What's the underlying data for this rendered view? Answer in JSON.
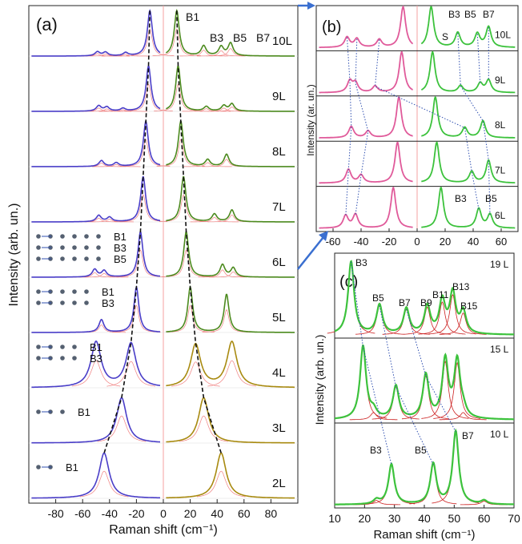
{
  "chart_data": [
    {
      "panel": "(a)",
      "type": "line",
      "xlabel": "Raman shift (cm⁻¹)",
      "ylabel": "Intensity (arb. un.)",
      "xlim": [
        -100,
        100
      ],
      "xticks": [
        -80,
        -60,
        -40,
        -20,
        0,
        20,
        40,
        60,
        80
      ],
      "colors": {
        "stokes": "#4a3ec8",
        "antistokes_green": "#4c8a1e",
        "antistokes_olive": "#a88a10",
        "fit": "#f08080",
        "zero_line": "#f4a0a0"
      },
      "rows": [
        {
          "label": "10L",
          "blue_peaks": [
            [
              -49,
              0.09
            ],
            [
              -43,
              0.08
            ],
            [
              -28,
              0.07
            ],
            [
              -10,
              1.0
            ]
          ],
          "green_peaks": [
            [
              10,
              1.0
            ],
            [
              30,
              0.22
            ],
            [
              43,
              0.2
            ],
            [
              50,
              0.28
            ]
          ],
          "green_color": "#4c8a1e"
        },
        {
          "label": "9L",
          "blue_peaks": [
            [
              -48,
              0.12
            ],
            [
              -42,
              0.09
            ],
            [
              -30,
              0.06
            ],
            [
              -11,
              1.0
            ]
          ],
          "green_peaks": [
            [
              11,
              1.0
            ],
            [
              32,
              0.1
            ],
            [
              45,
              0.12
            ],
            [
              51,
              0.16
            ]
          ],
          "green_color": "#4c8a1e"
        },
        {
          "label": "8L",
          "blue_peaks": [
            [
              -46,
              0.13
            ],
            [
              -35,
              0.08
            ],
            [
              -13,
              1.0
            ]
          ],
          "green_peaks": [
            [
              13,
              1.0
            ],
            [
              33,
              0.15
            ],
            [
              47,
              0.27
            ]
          ],
          "green_color": "#4c8a1e"
        },
        {
          "label": "7L",
          "blue_peaks": [
            [
              -48,
              0.14
            ],
            [
              -40,
              0.1
            ],
            [
              -15,
              1.0
            ]
          ],
          "green_peaks": [
            [
              15,
              1.0
            ],
            [
              38,
              0.17
            ],
            [
              51,
              0.26
            ]
          ],
          "green_color": "#4c8a1e"
        },
        {
          "label": "6L",
          "blue_peaks": [
            [
              -51,
              0.17
            ],
            [
              -44,
              0.14
            ],
            [
              -17,
              1.0
            ]
          ],
          "green_peaks": [
            [
              17,
              1.0
            ],
            [
              44,
              0.27
            ],
            [
              52,
              0.2
            ]
          ],
          "green_color": "#4c8a1e"
        },
        {
          "label": "5L",
          "blue_peaks": [
            [
              -46,
              0.28
            ],
            [
              -20,
              1.0
            ]
          ],
          "green_peaks": [
            [
              20,
              1.0
            ],
            [
              47,
              0.84
            ]
          ],
          "green_color": "#4c8a1e"
        },
        {
          "label": "4L",
          "blue_peaks": [
            [
              -50,
              1.0
            ],
            [
              -24,
              0.97
            ]
          ],
          "green_peaks": [
            [
              24,
              0.95
            ],
            [
              51,
              1.0
            ]
          ],
          "green_color": "#a88a10"
        },
        {
          "label": "3L",
          "blue_peaks": [
            [
              -31,
              1.0
            ]
          ],
          "green_peaks": [
            [
              30,
              1.0
            ]
          ],
          "green_color": "#a88a10"
        },
        {
          "label": "2L",
          "blue_peaks": [
            [
              -44,
              1.0
            ]
          ],
          "green_peaks": [
            [
              43,
              1.0
            ]
          ],
          "green_color": "#a88a10"
        }
      ],
      "peak_labels": [
        "B1",
        "B3",
        "B5",
        "B7"
      ],
      "insets": [
        {
          "row": "6L",
          "labels": [
            "B1",
            "B3",
            "B5"
          ]
        },
        {
          "row": "5L",
          "labels": [
            "B1",
            "B3"
          ]
        },
        {
          "row": "4L",
          "labels": [
            "B1",
            "B3"
          ]
        },
        {
          "row": "3L",
          "labels": [
            "B1"
          ]
        },
        {
          "row": "2L",
          "labels": [
            "B1"
          ]
        }
      ]
    },
    {
      "panel": "(b)",
      "type": "line",
      "xlabel": "",
      "ylabel": "Intensity (ar. un.)",
      "xlim": [
        -72,
        72
      ],
      "xticks": [
        -60,
        -40,
        -20,
        0,
        20,
        40,
        60
      ],
      "colors": {
        "stokes": "#e05a9a",
        "antistokes": "#3cc23c",
        "fit": "#f08080",
        "dotted": "#3050b0"
      },
      "rows": [
        {
          "label": "10L",
          "pink_peaks": [
            [
              -50,
              0.45
            ],
            [
              -43,
              0.38
            ],
            [
              -27,
              0.35
            ],
            [
              -10,
              1.8
            ]
          ],
          "green_peaks": [
            [
              10,
              1.8
            ],
            [
              29,
              0.65
            ],
            [
              43,
              0.6
            ],
            [
              51,
              0.9
            ]
          ]
        },
        {
          "label": "9L",
          "pink_peaks": [
            [
              -48,
              0.5
            ],
            [
              -44,
              0.42
            ],
            [
              -30,
              0.28
            ],
            [
              -11,
              1.8
            ]
          ],
          "green_peaks": [
            [
              11,
              1.8
            ],
            [
              31,
              0.3
            ],
            [
              45,
              0.4
            ],
            [
              51,
              0.55
            ]
          ]
        },
        {
          "label": "8L",
          "pink_peaks": [
            [
              -47,
              0.5
            ],
            [
              -35,
              0.3
            ],
            [
              -13,
              1.8
            ]
          ],
          "green_peaks": [
            [
              13,
              1.8
            ],
            [
              34,
              0.45
            ],
            [
              47,
              0.75
            ]
          ]
        },
        {
          "label": "7L",
          "pink_peaks": [
            [
              -49,
              0.6
            ],
            [
              -40,
              0.35
            ],
            [
              -14,
              1.8
            ]
          ],
          "green_peaks": [
            [
              14,
              1.8
            ],
            [
              39,
              0.5
            ],
            [
              51,
              1.0
            ]
          ]
        },
        {
          "label": "6L",
          "pink_peaks": [
            [
              -51,
              0.55
            ],
            [
              -44,
              0.6
            ],
            [
              -17,
              1.8
            ]
          ],
          "green_peaks": [
            [
              17,
              1.8
            ],
            [
              44,
              0.85
            ],
            [
              52,
              0.6
            ]
          ]
        }
      ],
      "peak_labels": [
        "B3",
        "B5",
        "B7",
        "S"
      ]
    },
    {
      "panel": "(c)",
      "type": "line",
      "xlabel": "Raman shift (cm⁻¹)",
      "ylabel": "Intensity (arb. un.)",
      "xlim": [
        10,
        70
      ],
      "xticks": [
        10,
        20,
        30,
        40,
        50,
        60,
        70
      ],
      "colors": {
        "data": "#3cc23c",
        "fit": "#cc2020",
        "dotted": "#3050b0"
      },
      "rows": [
        {
          "label": "19 L",
          "peaks": [
            [
              15.5,
              1.0
            ],
            [
              25,
              0.4
            ],
            [
              34,
              0.35
            ],
            [
              41,
              0.38
            ],
            [
              46,
              0.45
            ],
            [
              49.5,
              0.55
            ],
            [
              53,
              0.3
            ]
          ]
        },
        {
          "label": "15 L",
          "peaks": [
            [
              19.5,
              1.0
            ],
            [
              23,
              0.1
            ],
            [
              30.5,
              0.45
            ],
            [
              40.5,
              0.6
            ],
            [
              47,
              0.8
            ],
            [
              51,
              0.78
            ],
            [
              53,
              0.1
            ]
          ]
        },
        {
          "label": "10 L",
          "peaks": [
            [
              24,
              0.06
            ],
            [
              29,
              0.55
            ],
            [
              43,
              0.55
            ],
            [
              50.5,
              1.0
            ],
            [
              60,
              0.05
            ]
          ]
        }
      ],
      "peak_labels": [
        "B3",
        "B5",
        "B7",
        "B9",
        "B11",
        "B13",
        "B15"
      ]
    }
  ]
}
